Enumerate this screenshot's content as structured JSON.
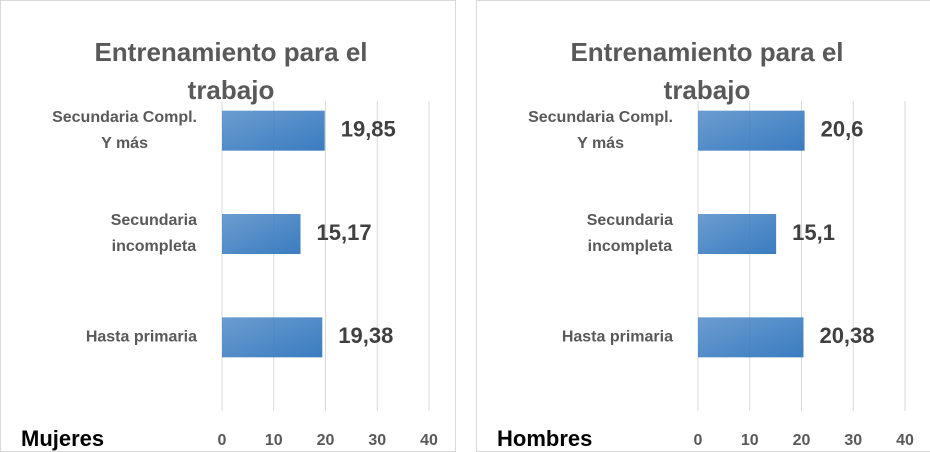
{
  "chart_data": [
    {
      "type": "bar",
      "orientation": "horizontal",
      "title": "Entrenamiento para el trabajo",
      "label": "Mujeres",
      "categories": [
        [
          "Secundaria Compl.",
          "Y más"
        ],
        [
          "Secundaria",
          "incompleta"
        ],
        [
          "Hasta primaria"
        ]
      ],
      "values": [
        19.85,
        15.17,
        19.38
      ],
      "value_labels": [
        "19,85",
        "15,17",
        "19,38"
      ],
      "color": "#3a7cc0",
      "xlim": [
        0,
        40
      ],
      "xticks": [
        0,
        10,
        20,
        30,
        40
      ],
      "grid": true
    },
    {
      "type": "bar",
      "orientation": "horizontal",
      "title": "Entrenamiento para el trabajo",
      "label": "Hombres",
      "categories": [
        [
          "Secundaria Compl.",
          "Y más"
        ],
        [
          "Secundaria",
          "incompleta"
        ],
        [
          "Hasta primaria"
        ]
      ],
      "values": [
        20.6,
        15.1,
        20.38
      ],
      "value_labels": [
        "20,6",
        "15,1",
        "20,38"
      ],
      "color": "#3a7cc0",
      "xlim": [
        0,
        40
      ],
      "xticks": [
        0,
        10,
        20,
        30,
        40
      ],
      "grid": true
    }
  ]
}
